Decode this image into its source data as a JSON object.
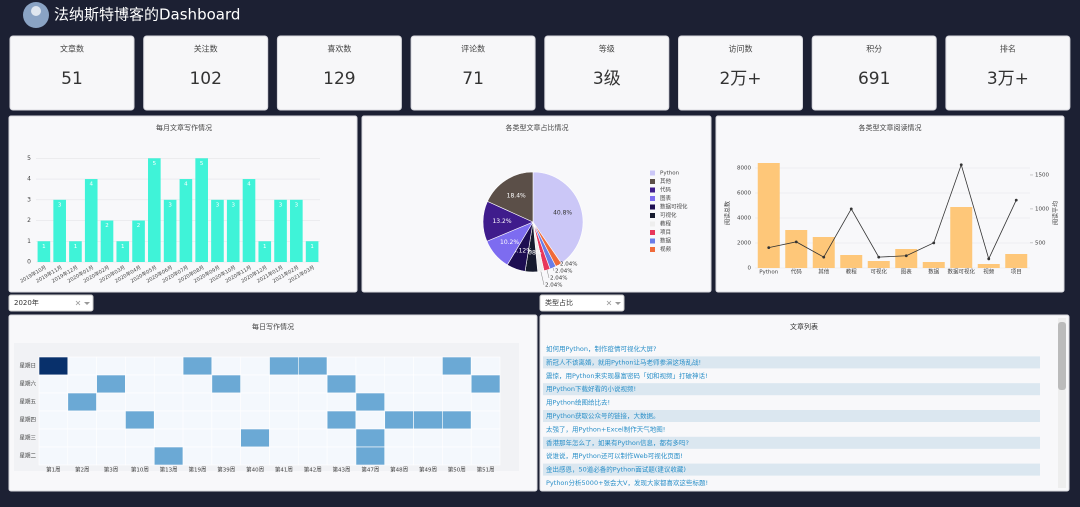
{
  "header": {
    "title": "法纳斯特博客的Dashboard"
  },
  "stats": [
    {
      "label": "文章数",
      "value": 51
    },
    {
      "label": "关注数",
      "value": 102
    },
    {
      "label": "喜欢数",
      "value": 129
    },
    {
      "label": "评论数",
      "value": 71
    },
    {
      "label": "等级",
      "value": "3级"
    },
    {
      "label": "访问数",
      "value": "2万+"
    },
    {
      "label": "积分",
      "value": 691
    },
    {
      "label": "排名",
      "value": "3万+"
    }
  ],
  "filters": [
    "2020年",
    "类型占比"
  ],
  "chart_data": [
    {
      "type": "bar",
      "title": "每月文章写作情况",
      "categories": [
        "2019年10月",
        "2019年11月",
        "2019年12月",
        "2020年01月",
        "2020年02月",
        "2020年03月",
        "2020年04月",
        "2020年05月",
        "2020年06月",
        "2020年07月",
        "2020年08月",
        "2020年09月",
        "2020年10月",
        "2020年11月",
        "2020年12月",
        "2021年01月",
        "2021年02月",
        "2021年03月"
      ],
      "values": [
        1,
        3,
        1,
        4,
        2,
        1,
        2,
        5,
        3,
        4,
        5,
        3,
        3,
        4,
        1,
        3,
        3,
        1
      ],
      "color": "#3ff3d8",
      "ylim": [
        0,
        5.4
      ],
      "yticks": [
        0,
        1,
        2,
        3,
        4,
        5
      ],
      "grid": true
    },
    {
      "type": "pie",
      "title": "各类型文章占比情况",
      "categories": [
        "Python",
        "其他",
        "代码",
        "图表",
        "数据可视化",
        "可视化",
        "教程",
        "项目",
        "数据",
        "视频"
      ],
      "values": [
        40.8,
        18.4,
        13.2,
        10.2,
        6.12,
        4.08,
        2.04,
        2.04,
        2.04,
        2.04
      ],
      "value_labels": [
        "40.8%",
        "18.4%",
        "13.2%",
        "10.2%",
        "6.12%",
        "4.08%",
        "2.04%",
        "2.04%",
        "2.04%",
        "2.04%"
      ],
      "colors": [
        "#cbc7f7",
        "#5b4f48",
        "#3f1c8c",
        "#7d6cf0",
        "#1d0e52",
        "#161a2e",
        "#eeeeee",
        "#e8365b",
        "#6a7de8",
        "#f06a3a"
      ]
    },
    {
      "type": "bar_line",
      "title": "各类型文章阅读情况",
      "categories": [
        "Python",
        "代码",
        "其他",
        "教程",
        "可视化",
        "图表",
        "数据",
        "数据可视化",
        "视频",
        "项目"
      ],
      "series": [
        {
          "name": "阅读总数",
          "type": "bar",
          "color": "#fec779",
          "values": [
            8400,
            3040,
            2480,
            1040,
            560,
            1520,
            480,
            4880,
            320,
            1120
          ]
        },
        {
          "name": "阅读平均",
          "type": "line",
          "axis": "y2",
          "color": "#333333",
          "values": [
            430,
            515,
            290,
            1000,
            290,
            310,
            500,
            1650,
            265,
            1130
          ]
        }
      ],
      "ylabel": "阅读总数",
      "y2label": "阅读平均",
      "ylim": [
        0,
        8800
      ],
      "yticks": [
        0,
        2000,
        4000,
        6000,
        8000
      ],
      "y2lim": [
        130,
        1750
      ],
      "y2ticks": [
        500,
        1000,
        1500
      ],
      "grid": true
    },
    {
      "type": "heatmap",
      "title": "每日写作情况",
      "x": [
        "第1周",
        "第2周",
        "第3周",
        "第10周",
        "第13周",
        "第19周",
        "第39周",
        "第40周",
        "第41周",
        "第42周",
        "第43周",
        "第47周",
        "第48周",
        "第49周",
        "第50周",
        "第51周"
      ],
      "y": [
        "星期日",
        "星期六",
        "星期五",
        "星期四",
        "星期三",
        "星期二"
      ],
      "z": [
        [
          2,
          0,
          0,
          0,
          0,
          1,
          0,
          0,
          1,
          1,
          0,
          0,
          0,
          0,
          1,
          0
        ],
        [
          0,
          0,
          1,
          0,
          0,
          0,
          1,
          0,
          0,
          0,
          1,
          0,
          0,
          0,
          0,
          1
        ],
        [
          0,
          1,
          0,
          0,
          0,
          0,
          0,
          0,
          0,
          0,
          0,
          1,
          0,
          0,
          0,
          0
        ],
        [
          0,
          0,
          0,
          1,
          0,
          0,
          0,
          0,
          0,
          0,
          1,
          0,
          1,
          1,
          1,
          0
        ],
        [
          0,
          0,
          0,
          0,
          0,
          0,
          0,
          1,
          0,
          0,
          0,
          1,
          0,
          0,
          0,
          0
        ],
        [
          0,
          0,
          0,
          0,
          1,
          0,
          0,
          0,
          0,
          0,
          0,
          1,
          0,
          0,
          0,
          0
        ]
      ],
      "colorscale": [
        "#f4f8fd",
        "#6ba9d5",
        "#08306b"
      ]
    }
  ],
  "article_list": {
    "title": "文章列表",
    "items": [
      "如何用Python，制作疫情可视化大屏?",
      "新冠人不该离婚，就用Python让马老师参演这场乱战!",
      "震惊，用Python来实现暴富密码「如和视频」打破神话!",
      "用Python下载好看的小说视频!",
      "用Python绘图给比去!",
      "用Python获取公众号的链接，大数据。",
      "太强了，用Python+Excel制作天气地图!",
      "香港那年怎么了，如果有Python信息，都有多吗?",
      "说谁说，用Python还可以制作Web可视化页面!",
      "金出感恩，50道必备的Python面试题(建议收藏)",
      "Python分析5000+张会大V，发现大家都喜欢这些标题!"
    ]
  }
}
